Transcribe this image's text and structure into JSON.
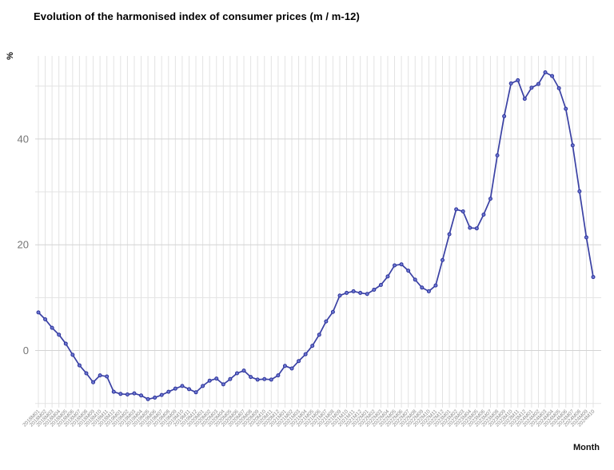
{
  "chart_data": {
    "type": "line",
    "title": "Evolution of the harmonised index of consumer prices (m / m-12)",
    "xlabel": "Month",
    "ylabel": "%",
    "legend": "none",
    "grid": "vertical line per month, horizontal every 10 units",
    "ylim": [
      -10.8,
      55.7
    ],
    "y_ticks_labeled": [
      0,
      20,
      40
    ],
    "y_gridlines": [
      -10,
      0,
      10,
      20,
      30,
      40,
      50
    ],
    "colors": {
      "line": "#3a41a4",
      "marker_fill": "#6b76cf",
      "marker_stroke": "#2d339b",
      "grid_major": "#d4d4d4",
      "grid_minor": "#e3e3e3",
      "y_tick_text": "#757575",
      "x_tick_text": "#8a8a8a"
    },
    "categories": [
      "2018M01",
      "2018M02",
      "2018M03",
      "2018M04",
      "2018M05",
      "2018M06",
      "2018M07",
      "2018M08",
      "2018M09",
      "2018M10",
      "2018M11",
      "2018M12",
      "2019M01",
      "2019M02",
      "2019M03",
      "2019M04",
      "2019M05",
      "2019M06",
      "2019M07",
      "2019M08",
      "2019M09",
      "2019M10",
      "2019M11",
      "2019M12",
      "2020M01",
      "2020M02",
      "2020M03",
      "2020M04",
      "2020M05",
      "2020M06",
      "2020M07",
      "2020M08",
      "2020M09",
      "2020M10",
      "2020M11",
      "2020M12",
      "2021M01",
      "2021M02",
      "2021M03",
      "2021M04",
      "2021M05",
      "2021M06",
      "2021M07",
      "2021M08",
      "2021M09",
      "2021M10",
      "2021M11",
      "2021M12",
      "2022M01",
      "2022M02",
      "2022M03",
      "2022M04",
      "2022M05",
      "2022M06",
      "2022M07",
      "2022M08",
      "2022M09",
      "2022M10",
      "2022M11",
      "2022M12",
      "2023M01",
      "2023M02",
      "2023M03",
      "2023M04",
      "2023M05",
      "2023M06",
      "2023M07",
      "2023M08",
      "2023M09",
      "2023M10",
      "2023M11",
      "2023M12",
      "2024M01",
      "2024M02",
      "2024M03",
      "2024M04",
      "2024M05",
      "2024M06",
      "2024M07",
      "2024M08",
      "2024M09",
      "2024M10"
    ],
    "values": [
      7.2,
      5.9,
      4.3,
      3.0,
      1.3,
      -0.8,
      -2.8,
      -4.3,
      -6.0,
      -4.7,
      -4.9,
      -7.8,
      -8.2,
      -8.3,
      -8.1,
      -8.5,
      -9.2,
      -8.9,
      -8.4,
      -7.8,
      -7.2,
      -6.7,
      -7.3,
      -7.9,
      -6.7,
      -5.7,
      -5.3,
      -6.4,
      -5.4,
      -4.3,
      -3.8,
      -5.0,
      -5.5,
      -5.4,
      -5.5,
      -4.7,
      -2.9,
      -3.4,
      -2.0,
      -0.7,
      0.9,
      3.0,
      5.5,
      7.3,
      10.4,
      10.9,
      11.2,
      10.9,
      10.7,
      11.5,
      12.4,
      14.0,
      16.1,
      16.3,
      15.1,
      13.4,
      11.9,
      11.2,
      12.3,
      17.1,
      22.0,
      26.7,
      26.3,
      23.2,
      23.1,
      25.7,
      28.7,
      36.9,
      44.3,
      50.5,
      51.1,
      47.6,
      49.7,
      50.4,
      52.6,
      51.9,
      49.6,
      45.7,
      38.8,
      30.1,
      21.4,
      13.9
    ]
  }
}
